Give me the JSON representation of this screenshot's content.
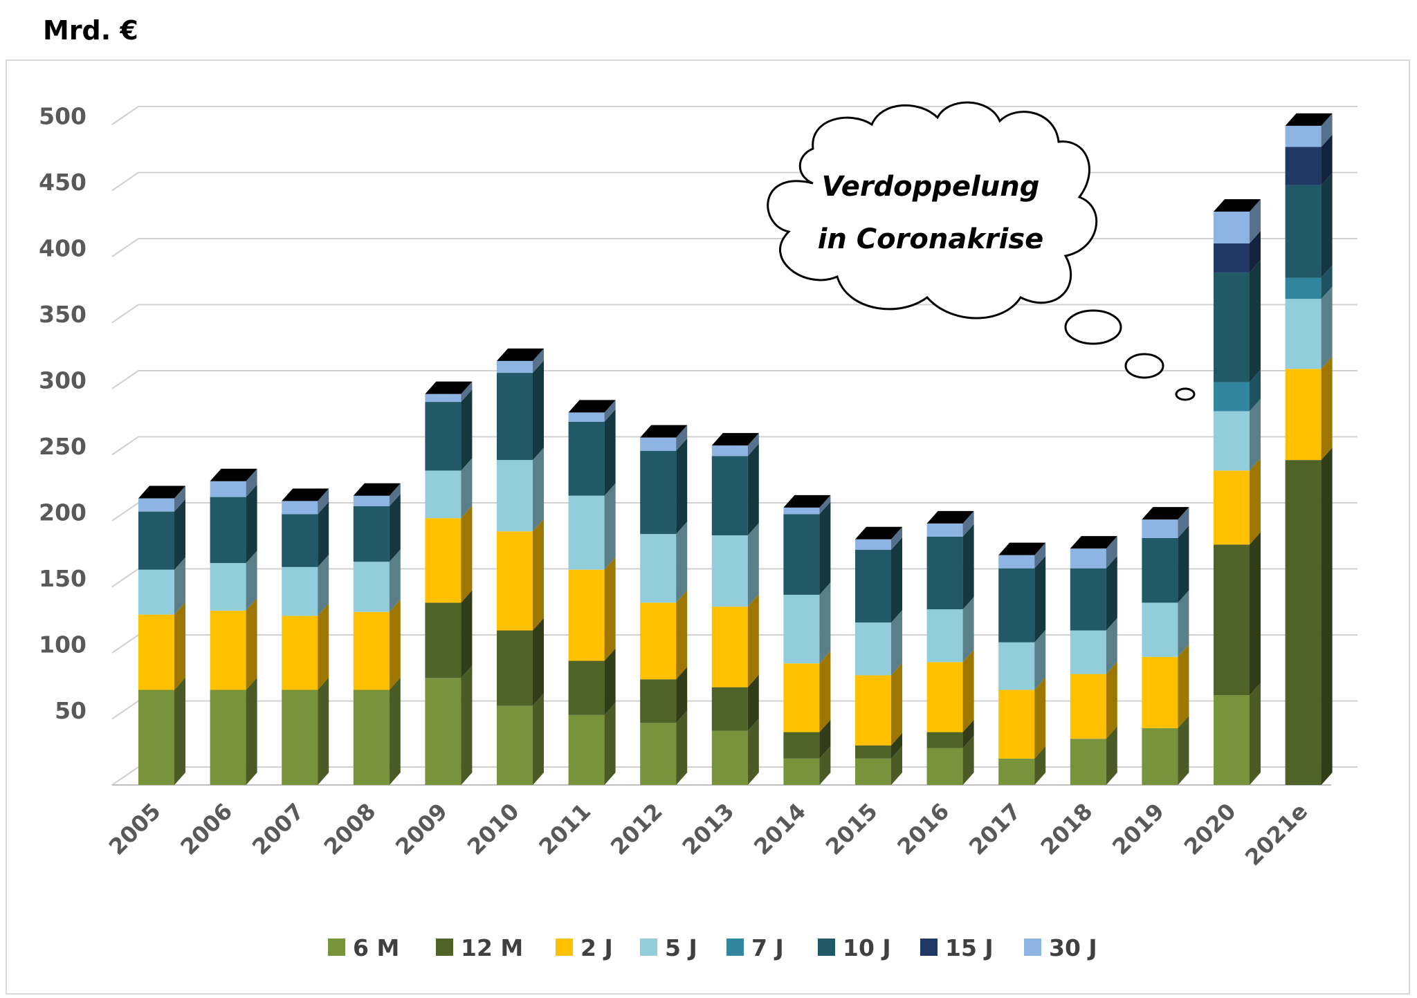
{
  "unit_label": "Mrd. €",
  "annotation": {
    "line1": "Verdoppelung",
    "line2": "in Coronakrise"
  },
  "colors": {
    "6 M": "#77933c",
    "12 M": "#4f6228",
    "2 J": "#ffc000",
    "5 J": "#92cddc",
    "7 J": "#31859c",
    "10 J": "#215967",
    "15 J": "#1f3864",
    "30 J": "#8db4e2"
  },
  "chart_data": {
    "type": "bar",
    "stacked": true,
    "three_d": true,
    "categories": [
      "2005",
      "2006",
      "2007",
      "2008",
      "2009",
      "2010",
      "2011",
      "2012",
      "2013",
      "2014",
      "2015",
      "2016",
      "2017",
      "2018",
      "2019",
      "2020",
      "2021e"
    ],
    "yticks": [
      50,
      100,
      150,
      200,
      250,
      300,
      350,
      400,
      450,
      500
    ],
    "ylim": [
      0,
      500
    ],
    "grid": true,
    "legend_position": "bottom",
    "series": [
      {
        "name": "6 M",
        "values": [
          72,
          72,
          72,
          72,
          81,
          60,
          53,
          47,
          41,
          20,
          20,
          28,
          20,
          35,
          43,
          68,
          0
        ]
      },
      {
        "name": "12 M",
        "values": [
          0,
          0,
          0,
          0,
          57,
          57,
          41,
          33,
          33,
          20,
          10,
          12,
          0,
          0,
          0,
          114,
          246
        ]
      },
      {
        "name": "2 J",
        "values": [
          57,
          60,
          56,
          59,
          64,
          75,
          69,
          58,
          61,
          52,
          53,
          53,
          52,
          49,
          54,
          56,
          69
        ]
      },
      {
        "name": "5 J",
        "values": [
          34,
          36,
          37,
          38,
          36,
          54,
          56,
          52,
          54,
          52,
          40,
          40,
          36,
          33,
          41,
          45,
          53
        ]
      },
      {
        "name": "7 J",
        "values": [
          0,
          0,
          0,
          0,
          0,
          0,
          0,
          0,
          0,
          0,
          0,
          0,
          0,
          0,
          0,
          22,
          16
        ]
      },
      {
        "name": "10 J",
        "values": [
          44,
          50,
          40,
          42,
          52,
          66,
          56,
          63,
          60,
          61,
          55,
          55,
          56,
          47,
          49,
          83,
          70
        ]
      },
      {
        "name": "15 J",
        "values": [
          0,
          0,
          0,
          0,
          0,
          0,
          0,
          0,
          0,
          0,
          0,
          0,
          0,
          0,
          0,
          22,
          29
        ]
      },
      {
        "name": "30 J",
        "values": [
          10,
          12,
          10,
          8,
          6,
          9,
          7,
          10,
          8,
          5,
          8,
          10,
          10,
          15,
          14,
          24,
          16
        ]
      }
    ]
  }
}
